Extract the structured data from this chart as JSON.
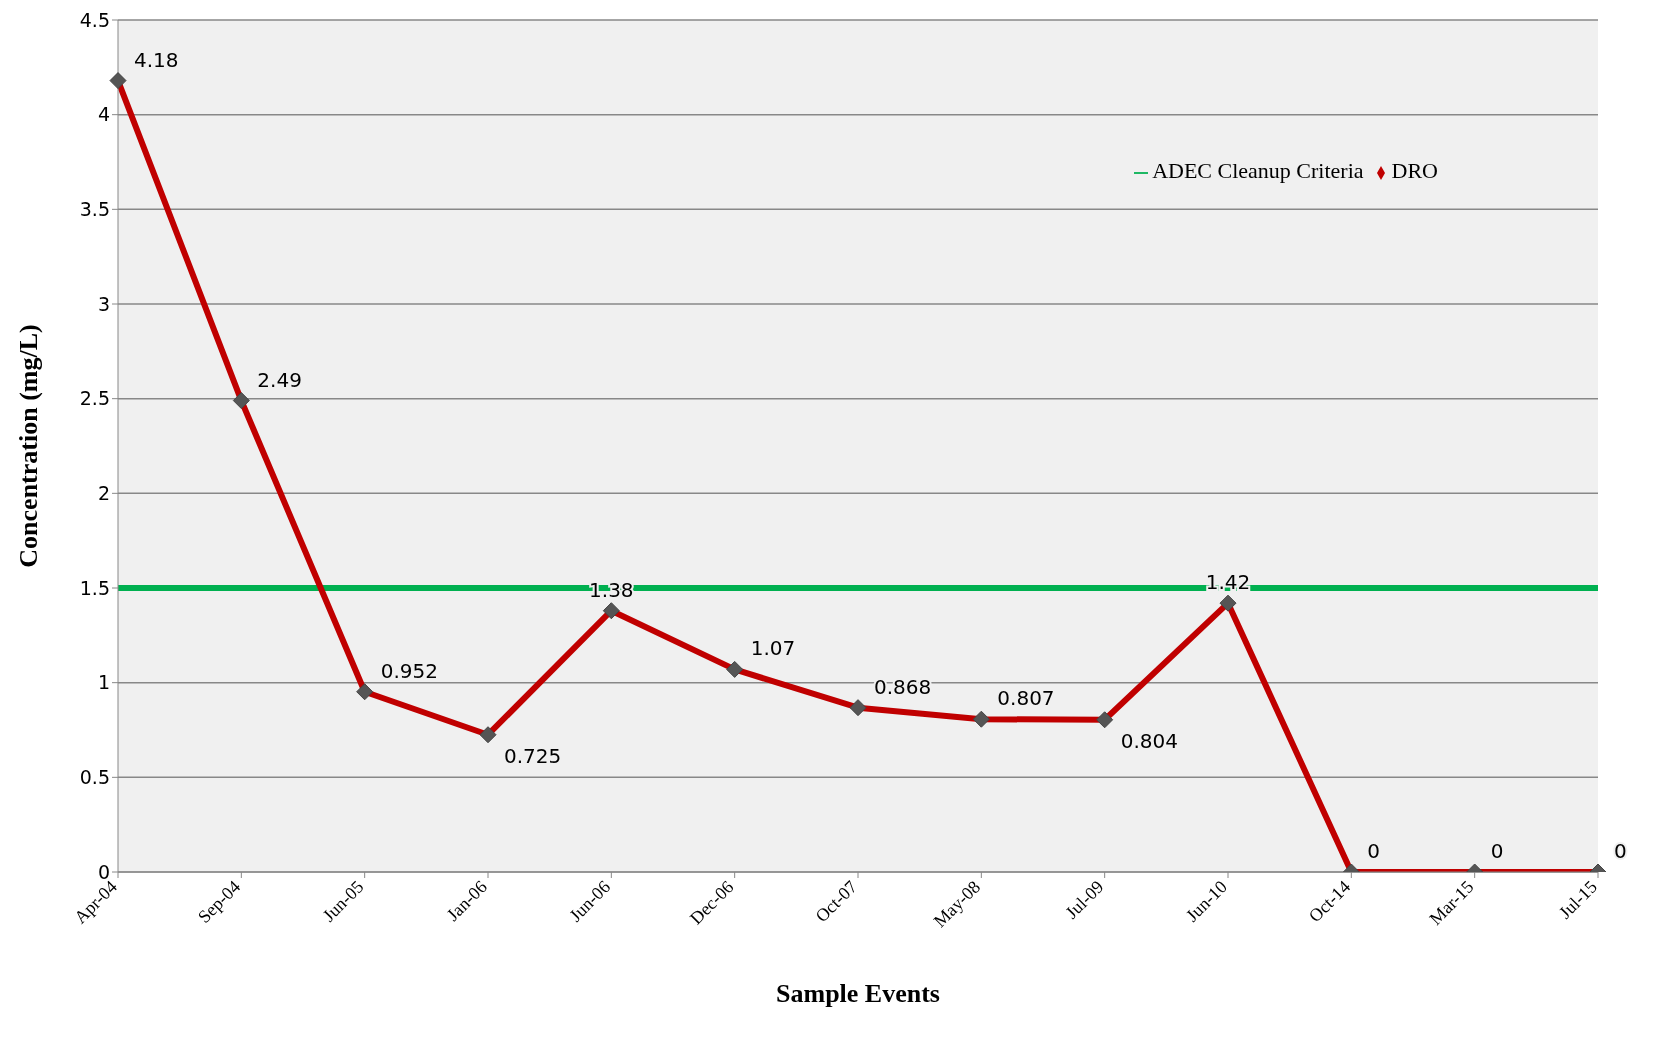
{
  "chart_data": {
    "type": "line",
    "xlabel": "Sample Events",
    "ylabel": "Concentration (mg/L)",
    "categories": [
      "Apr-04",
      "Sep-04",
      "Jun-05",
      "Jan-06",
      "Jun-06",
      "Dec-06",
      "Oct-07",
      "May-08",
      "Jul-09",
      "Jun-10",
      "Oct-14",
      "Mar-15",
      "Jul-15"
    ],
    "series": [
      {
        "name": "ADEC Cleanup Criteria",
        "color": "#00b050",
        "marker": "none",
        "values": [
          1.5,
          1.5,
          1.5,
          1.5,
          1.5,
          1.5,
          1.5,
          1.5,
          1.5,
          1.5,
          1.5,
          1.5,
          1.5
        ]
      },
      {
        "name": "DRO",
        "color": "#c00000",
        "marker": "diamond",
        "values": [
          4.18,
          2.49,
          0.952,
          0.725,
          1.38,
          1.07,
          0.868,
          0.807,
          0.804,
          1.42,
          0,
          0,
          0
        ],
        "value_labels": [
          "4.18",
          "2.49",
          "0.952",
          "0.725",
          "1.38",
          "1.07",
          "0.868",
          "0.807",
          "0.804",
          "1.42",
          "0",
          "0",
          "0"
        ]
      }
    ],
    "ylim": [
      0,
      4.5
    ],
    "yticks": [
      0,
      0.5,
      1,
      1.5,
      2,
      2.5,
      3,
      3.5,
      4,
      4.5
    ],
    "grid": "y",
    "legend": "top right",
    "line_style": "solid"
  }
}
